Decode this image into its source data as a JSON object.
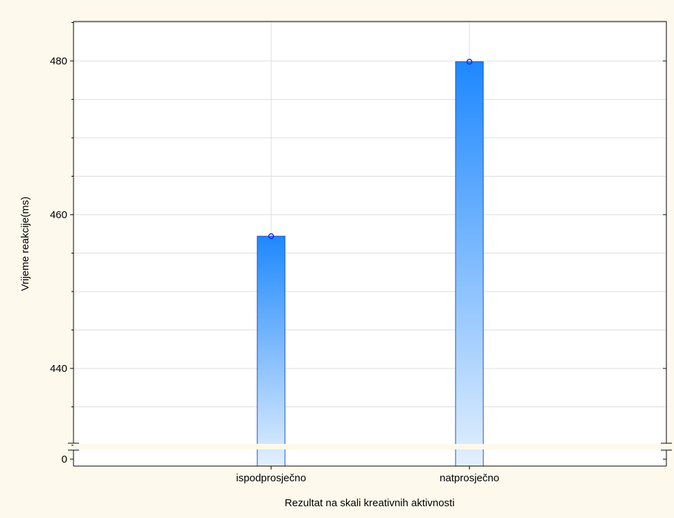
{
  "chart_data": {
    "type": "bar",
    "xlabel": "Rezultat na skali kreativnih aktivnosti",
    "ylabel": "Vrijeme reakcije(ms)",
    "categories": [
      "ispodprosječno",
      "natprosječno"
    ],
    "values": [
      457.2,
      479.9
    ],
    "y_axis": {
      "broken": true,
      "break_below": 0,
      "range_above_break": [
        428,
        487
      ],
      "ticks": [
        0,
        440,
        460,
        480
      ],
      "minor_ticks": [
        430,
        435,
        445,
        450,
        455,
        465,
        470,
        475,
        485
      ],
      "grid": true
    },
    "bar_color_top": "#1e88ff",
    "bar_color_bottom": "#e3f0fd",
    "marker_color": "#1a1aff",
    "background": "#fdf9ec"
  }
}
